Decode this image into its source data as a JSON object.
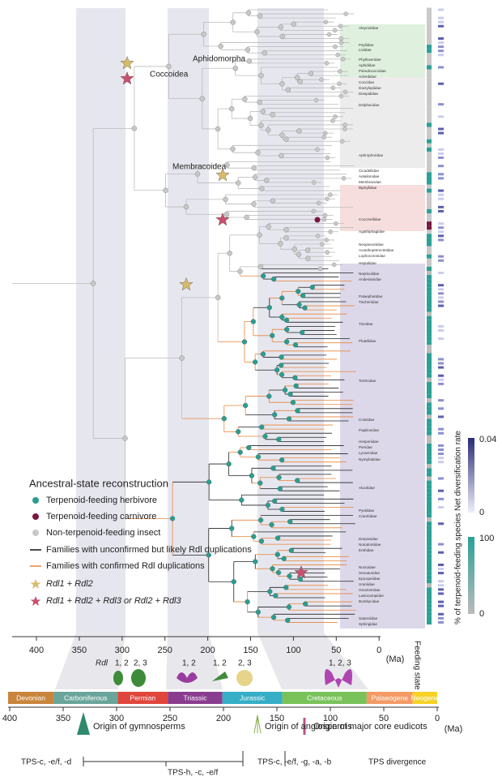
{
  "figure": {
    "clade_labels": [
      "Aphidomorpha",
      "Coccoidea",
      "Membracoidea"
    ],
    "families": [
      "Aleyrodidae",
      "Psyllidae",
      "Liviidae",
      "Phylloxeridae",
      "Aphididae",
      "Pseudococcidae",
      "Aclerdidae",
      "Coccidae",
      "Dactylopiidae",
      "Diaspididae",
      "Delphacidae",
      "Aphrophoridae",
      "Cicadellidae",
      "Aetalionidae",
      "Membracidae",
      "Biphyllidae",
      "Coccinellidae",
      "Agathiphagidae",
      "Neopseustidae",
      "Acanthopteroctetidae",
      "Lophocoronidae",
      "Hepialidae",
      "Nepticulidae",
      "Andesianidae",
      "Palaephatidae",
      "Tischeriidae",
      "Tineidae",
      "Plutellidae",
      "Tortricidae",
      "Cossidae",
      "Papilionidae",
      "Hesperiidae",
      "Pieridae",
      "Lycaenidae",
      "Nymphalidae",
      "Alucitidae",
      "Pyralidae",
      "Crambidae",
      "Drepanidae",
      "Notodontidae",
      "Erebidae",
      "Noctuidae",
      "Sematuridae",
      "Epicopeiidae",
      "Uraniidae",
      "Geometridae",
      "Lasiocampidae",
      "Bombycidae",
      "Saturniidae",
      "Sphingidae"
    ],
    "top_axis": {
      "ticks": [
        "400",
        "350",
        "300",
        "250",
        "200",
        "150",
        "100",
        "50",
        "0"
      ],
      "unit": "(Ma)"
    },
    "legend": {
      "title": "Ancestral-state reconstruction",
      "items": [
        "Terpenoid-feeding herbivore",
        "Terpenoid-feeding carnivore",
        "Non-terpenoid-feeding insect",
        "Families with unconfirmed but likely Rdl duplications",
        "Families with confirmed Rdl duplications",
        "Rdl1 + Rdl2",
        "Rdl1 + Rdl2 + Rdl3 or Rdl2 + Rdl3"
      ]
    },
    "colorbars": {
      "rate": {
        "label": "Net diversification rate",
        "max": "0.04",
        "min": "0"
      },
      "feeding": {
        "label": "% of terpenoid-feeding species",
        "max": "100",
        "min": "0"
      }
    },
    "feeding_state_label": "Feeding state",
    "rdl_labels": [
      "Rdl",
      "1, 2",
      "2, 3",
      "1, 2",
      "1, 2",
      "2, 3",
      "1, 2, 3"
    ],
    "periods": [
      "Devonian",
      "Carboniferous",
      "Permian",
      "Triassic",
      "Jurassic",
      "Cretaceous",
      "Palaeogene",
      "Neogene"
    ],
    "bottom_axis": {
      "ticks": [
        "400",
        "350",
        "300",
        "250",
        "200",
        "150",
        "100",
        "50",
        "0"
      ],
      "unit": "(Ma)"
    },
    "origins": [
      "Origin of gymnosperms",
      "Origin of angiosperms",
      "Origin of major core eudicots"
    ],
    "tps": [
      "TPS-c, -e/f, -d",
      "TPS-h, -c, -e/f",
      "TPS-c, -e/f, -g, -a, -b",
      "TPS divergence"
    ]
  }
}
